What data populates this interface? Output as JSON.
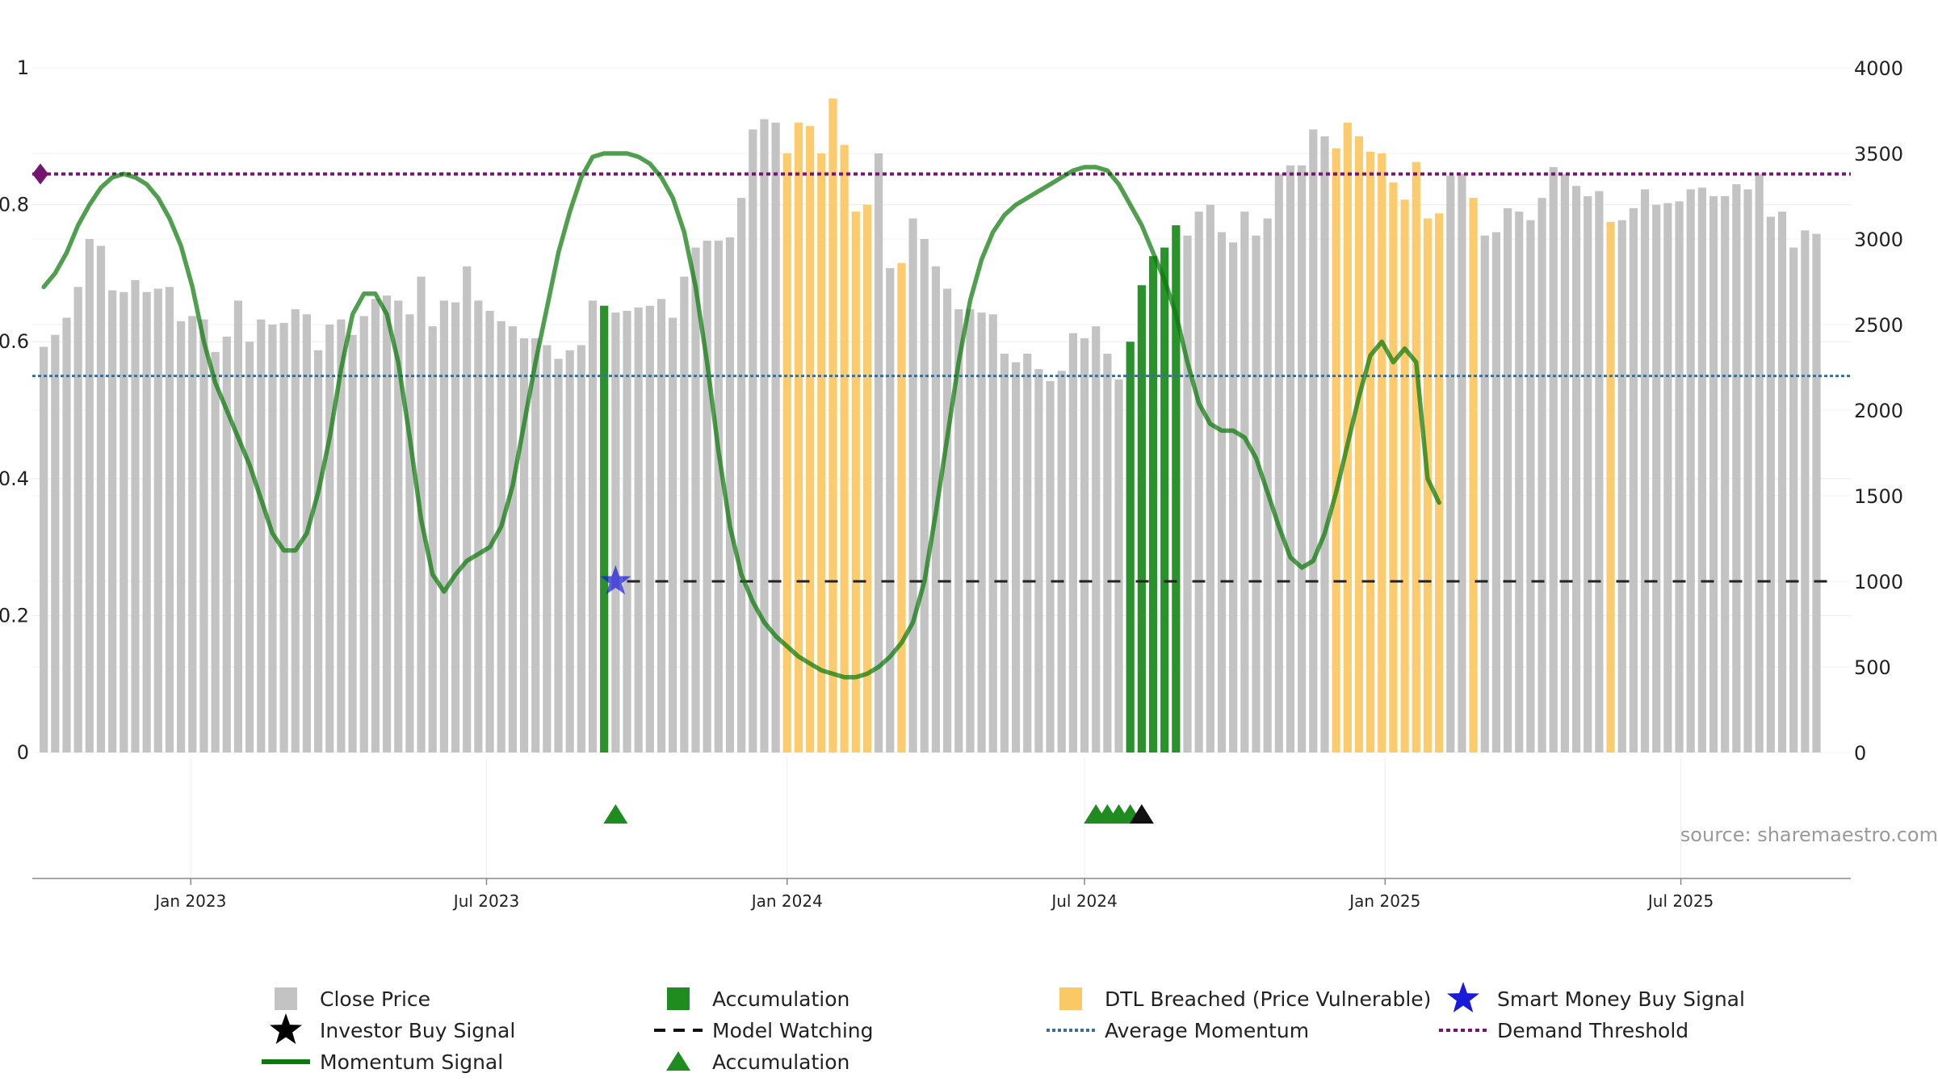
{
  "colors": {
    "close": "#c3c3c3",
    "accumulation": "#1f8c1f",
    "dtl": "#fbc866",
    "momentum": "#0b7a0b",
    "average": "#3a6e96",
    "demand": "#74166f",
    "watching": "#222222",
    "star": "#1a1ad9"
  },
  "source": "source: sharemaestro.com",
  "legend": [
    {
      "key": "close",
      "label": "Close Price"
    },
    {
      "key": "accumulation_bar",
      "label": "Accumulation"
    },
    {
      "key": "dtl",
      "label": "DTL Breached (Price Vulnerable)"
    },
    {
      "key": "smart_money",
      "label": "Smart Money Buy Signal"
    },
    {
      "key": "investor",
      "label": "Investor Buy Signal"
    },
    {
      "key": "watching",
      "label": "Model Watching"
    },
    {
      "key": "average",
      "label": "Average Momentum"
    },
    {
      "key": "demand",
      "label": "Demand Threshold"
    },
    {
      "key": "momentum",
      "label": "Momentum Signal"
    },
    {
      "key": "accumulation_tri",
      "label": "Accumulation"
    }
  ],
  "chart_data": {
    "type": "bar",
    "x_start": "2022-10-03",
    "x_interval_days": 7,
    "x_axis": {
      "ticks": [
        "Jan 2023",
        "Jul 2023",
        "Jan 2024",
        "Jul 2024",
        "Jan 2025",
        "Jul 2025"
      ],
      "tick_dates": [
        "2023-01-01",
        "2023-07-01",
        "2024-01-01",
        "2024-07-01",
        "2025-01-01",
        "2025-07-01"
      ]
    },
    "y_left": {
      "range": [
        0,
        1
      ],
      "ticks": [
        "0",
        "0.2",
        "0.4",
        "0.6",
        "0.8",
        "1"
      ],
      "tick_values": [
        0,
        0.2,
        0.4,
        0.6,
        0.8,
        1.0
      ]
    },
    "y_right": {
      "range": [
        0,
        4000
      ],
      "ticks": [
        "0",
        "500",
        "1000",
        "1500",
        "2000",
        "2500",
        "3000",
        "3500",
        "4000"
      ],
      "tick_values": [
        0,
        500,
        1000,
        1500,
        2000,
        2500,
        3000,
        3500,
        4000
      ]
    },
    "grid": true,
    "legend_position": "bottom",
    "close_price": [
      2370,
      2440,
      2540,
      2720,
      3000,
      2960,
      2700,
      2690,
      2760,
      2690,
      2710,
      2720,
      2520,
      2550,
      2530,
      2340,
      2430,
      2640,
      2400,
      2530,
      2500,
      2510,
      2590,
      2560,
      2350,
      2500,
      2530,
      2440,
      2550,
      2650,
      2670,
      2640,
      2560,
      2780,
      2490,
      2640,
      2630,
      2840,
      2640,
      2580,
      2520,
      2490,
      2420,
      2420,
      2380,
      2300,
      2350,
      2380,
      2640,
      2610,
      2570,
      2580,
      2600,
      2610,
      2650,
      2540,
      2780,
      2950,
      2990,
      2990,
      3010,
      3240,
      3640,
      3700,
      3680,
      3500,
      3680,
      3660,
      3500,
      3820,
      3550,
      3160,
      3200,
      3500,
      2830,
      2860,
      3120,
      3000,
      2840,
      2710,
      2590,
      2590,
      2570,
      2560,
      2330,
      2280,
      2330,
      2240,
      2170,
      2230,
      2450,
      2420,
      2490,
      2330,
      2180,
      2400,
      2730,
      2900,
      2950,
      3080,
      3020,
      3160,
      3200,
      3040,
      2980,
      3160,
      3020,
      3120,
      3380,
      3430,
      3430,
      3640,
      3600,
      3530,
      3680,
      3600,
      3510,
      3500,
      3330,
      3230,
      3450,
      3120,
      3150,
      3370,
      3380,
      3240,
      3020,
      3040,
      3180,
      3160,
      3110,
      3240,
      3420,
      3380,
      3310,
      3250,
      3280,
      3100,
      3110,
      3180,
      3290,
      3200,
      3210,
      3220,
      3290,
      3300,
      3250,
      3250,
      3320,
      3290,
      3380,
      3130,
      3160,
      2950,
      3050,
      3030
    ],
    "bar_flags": [
      "c",
      "c",
      "c",
      "c",
      "c",
      "c",
      "c",
      "c",
      "c",
      "c",
      "c",
      "c",
      "c",
      "c",
      "c",
      "c",
      "c",
      "c",
      "c",
      "c",
      "c",
      "c",
      "c",
      "c",
      "c",
      "c",
      "c",
      "c",
      "c",
      "c",
      "c",
      "c",
      "c",
      "c",
      "c",
      "c",
      "c",
      "c",
      "c",
      "c",
      "c",
      "c",
      "c",
      "c",
      "c",
      "c",
      "c",
      "c",
      "c",
      "a",
      "c",
      "c",
      "c",
      "c",
      "c",
      "c",
      "c",
      "c",
      "c",
      "c",
      "c",
      "c",
      "c",
      "c",
      "c",
      "d",
      "d",
      "d",
      "d",
      "d",
      "d",
      "d",
      "d",
      "c",
      "c",
      "d",
      "c",
      "c",
      "c",
      "c",
      "c",
      "c",
      "c",
      "c",
      "c",
      "c",
      "c",
      "c",
      "c",
      "c",
      "c",
      "c",
      "c",
      "c",
      "c",
      "a",
      "a",
      "a",
      "a",
      "a",
      "c",
      "c",
      "c",
      "c",
      "c",
      "c",
      "c",
      "c",
      "c",
      "c",
      "c",
      "c",
      "c",
      "d",
      "d",
      "d",
      "d",
      "d",
      "d",
      "d",
      "d",
      "d",
      "d",
      "c",
      "c",
      "d",
      "c",
      "c",
      "c",
      "c",
      "c",
      "c",
      "c",
      "c",
      "c",
      "c",
      "c",
      "d",
      "c",
      "c",
      "c",
      "c",
      "c",
      "c",
      "c",
      "c",
      "c",
      "c",
      "c",
      "c",
      "c",
      "c",
      "c",
      "c",
      "c",
      "c",
      "c",
      "c",
      "c",
      "c",
      "c",
      "c"
    ],
    "momentum": [
      0.68,
      0.7,
      0.73,
      0.77,
      0.8,
      0.825,
      0.84,
      0.845,
      0.84,
      0.83,
      0.81,
      0.78,
      0.74,
      0.68,
      0.6,
      0.54,
      0.5,
      0.46,
      0.42,
      0.37,
      0.32,
      0.295,
      0.295,
      0.32,
      0.38,
      0.46,
      0.56,
      0.64,
      0.67,
      0.67,
      0.64,
      0.57,
      0.46,
      0.34,
      0.26,
      0.235,
      0.26,
      0.28,
      0.29,
      0.3,
      0.33,
      0.39,
      0.48,
      0.57,
      0.65,
      0.73,
      0.79,
      0.84,
      0.87,
      0.875,
      0.875,
      0.875,
      0.87,
      0.86,
      0.84,
      0.81,
      0.76,
      0.68,
      0.57,
      0.44,
      0.33,
      0.26,
      0.22,
      0.19,
      0.17,
      0.155,
      0.14,
      0.13,
      0.12,
      0.115,
      0.11,
      0.11,
      0.115,
      0.125,
      0.14,
      0.16,
      0.19,
      0.25,
      0.35,
      0.46,
      0.57,
      0.66,
      0.72,
      0.76,
      0.785,
      0.8,
      0.81,
      0.82,
      0.83,
      0.84,
      0.85,
      0.855,
      0.855,
      0.85,
      0.83,
      0.8,
      0.77,
      0.73,
      0.69,
      0.64,
      0.57,
      0.51,
      0.48,
      0.47,
      0.47,
      0.46,
      0.43,
      0.38,
      0.33,
      0.285,
      0.27,
      0.28,
      0.32,
      0.38,
      0.45,
      0.52,
      0.58,
      0.6,
      0.57,
      0.59,
      0.57,
      0.4,
      0.365
    ],
    "momentum_start": "2022-10-03",
    "momentum_interval_days": 7,
    "average_momentum": 0.55,
    "demand_threshold": 0.845,
    "model_watching": {
      "value": 0.25,
      "start": "2023-09-25",
      "end": "2025-10-06"
    },
    "smart_money_buy_signal": {
      "date": "2023-09-18",
      "value": 0.25
    },
    "accumulation_markers": [
      "2023-09-18",
      "2024-07-08",
      "2024-07-15",
      "2024-07-22",
      "2024-07-29"
    ],
    "investor_buy_markers": [
      "2024-08-05"
    ],
    "start_marker_value": 0.845
  }
}
